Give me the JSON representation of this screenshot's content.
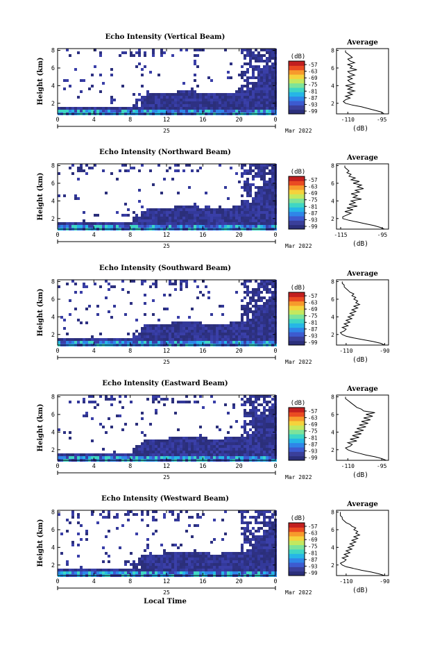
{
  "chart_data": {
    "type": "heatmap",
    "x_axis": {
      "label": "Local Time",
      "ticks": [
        "0",
        "4",
        "8",
        "12",
        "16",
        "20",
        "0"
      ],
      "range": [
        0,
        24
      ],
      "date_day": "25",
      "date_month_year": "Mar 2022"
    },
    "y_axis": {
      "label": "Height (km)",
      "ticks": [
        "2",
        "4",
        "6",
        "8"
      ],
      "range": [
        0.8,
        8.2
      ]
    },
    "colorbar": {
      "unit": "(dB)",
      "ticks": [
        "-57",
        "-63",
        "-69",
        "-75",
        "-81",
        "-87",
        "-93",
        "-99"
      ],
      "colors": [
        "#2b2f7a",
        "#3a3f9a",
        "#3d5bd0",
        "#2f86e8",
        "#26b6e6",
        "#3fd6c4",
        "#7de39a",
        "#c4e85f",
        "#f5d23c",
        "#f79a2c",
        "#ea4b22",
        "#c21f1f"
      ]
    },
    "panels": [
      {
        "title": "Echo Intensity (Vertical Beam)",
        "avg_title": "Average",
        "avg_xlabel": "(dB)",
        "avg_xticks": [
          "-110",
          "-95"
        ],
        "avg_xlim": [
          -115,
          -92
        ],
        "avg_profile": {
          "height": [
            0.8,
            1.0,
            1.2,
            1.4,
            1.6,
            1.8,
            2.0,
            2.2,
            2.4,
            2.6,
            2.8,
            3.0,
            3.2,
            3.4,
            3.6,
            3.8,
            4.0,
            4.2,
            4.4,
            4.6,
            4.8,
            5.0,
            5.2,
            5.4,
            5.6,
            5.8,
            6.0,
            6.2,
            6.4,
            6.6,
            6.8,
            7.0,
            7.2,
            7.4,
            7.6,
            7.8,
            8.0
          ],
          "db": [
            -94,
            -95,
            -98,
            -101,
            -104,
            -108,
            -111,
            -112,
            -111,
            -109,
            -111,
            -108,
            -110,
            -107,
            -110,
            -108,
            -111,
            -107,
            -109,
            -110,
            -108,
            -110,
            -107,
            -109,
            -110,
            -106,
            -109,
            -108,
            -110,
            -107,
            -109,
            -110,
            -108,
            -109,
            -110,
            -111,
            -111
          ]
        }
      },
      {
        "title": "Echo Intensity (Northward Beam)",
        "avg_title": "Average",
        "avg_xlabel": "(dB)",
        "avg_xticks": [
          "-115",
          "-95"
        ],
        "avg_xlim": [
          -117,
          -92
        ],
        "avg_profile": {
          "height": [
            0.8,
            1.0,
            1.2,
            1.4,
            1.6,
            1.8,
            2.0,
            2.2,
            2.4,
            2.6,
            2.8,
            3.0,
            3.2,
            3.4,
            3.6,
            3.8,
            4.0,
            4.2,
            4.4,
            4.6,
            4.8,
            5.0,
            5.2,
            5.4,
            5.6,
            5.8,
            6.0,
            6.2,
            6.4,
            6.6,
            6.8,
            7.0,
            7.2,
            7.4,
            7.6,
            7.8,
            8.0
          ],
          "db": [
            -94,
            -96,
            -99,
            -103,
            -107,
            -111,
            -114,
            -114,
            -112,
            -110,
            -113,
            -109,
            -112,
            -107,
            -111,
            -108,
            -110,
            -105,
            -109,
            -107,
            -110,
            -106,
            -108,
            -104,
            -107,
            -105,
            -109,
            -106,
            -110,
            -108,
            -111,
            -110,
            -112,
            -111,
            -112,
            -113,
            -113
          ]
        }
      },
      {
        "title": "Echo Intensity (Southward Beam)",
        "avg_title": "Average",
        "avg_xlabel": "(dB)",
        "avg_xticks": [
          "-110",
          "-90"
        ],
        "avg_xlim": [
          -115,
          -88
        ],
        "avg_profile": {
          "height": [
            0.8,
            1.0,
            1.2,
            1.4,
            1.6,
            1.8,
            2.0,
            2.2,
            2.4,
            2.6,
            2.8,
            3.0,
            3.2,
            3.4,
            3.6,
            3.8,
            4.0,
            4.2,
            4.4,
            4.6,
            4.8,
            5.0,
            5.2,
            5.4,
            5.6,
            5.8,
            6.0,
            6.2,
            6.4,
            6.6,
            6.8,
            7.0,
            7.2,
            7.4,
            7.6,
            7.8,
            8.0
          ],
          "db": [
            -90,
            -92,
            -96,
            -101,
            -106,
            -110,
            -112,
            -113,
            -111,
            -110,
            -112,
            -109,
            -111,
            -108,
            -110,
            -107,
            -109,
            -106,
            -108,
            -105,
            -107,
            -104,
            -106,
            -103,
            -105,
            -104,
            -106,
            -105,
            -107,
            -106,
            -108,
            -109,
            -110,
            -111,
            -111,
            -112,
            -112
          ]
        }
      },
      {
        "title": "Echo Intensity (Eastward Beam)",
        "avg_title": "Average",
        "avg_xlabel": "(dB)",
        "avg_xticks": [
          "-110",
          "-95"
        ],
        "avg_xlim": [
          -115,
          -92
        ],
        "avg_profile": {
          "height": [
            0.8,
            1.0,
            1.2,
            1.4,
            1.6,
            1.8,
            2.0,
            2.2,
            2.4,
            2.6,
            2.8,
            3.0,
            3.2,
            3.4,
            3.6,
            3.8,
            4.0,
            4.2,
            4.4,
            4.6,
            4.8,
            5.0,
            5.2,
            5.4,
            5.6,
            5.8,
            6.0,
            6.2,
            6.4,
            6.6,
            6.8,
            7.0,
            7.2,
            7.4,
            7.6,
            7.8,
            8.0
          ],
          "db": [
            -93,
            -95,
            -98,
            -102,
            -105,
            -108,
            -110,
            -111,
            -109,
            -108,
            -110,
            -106,
            -109,
            -105,
            -108,
            -104,
            -107,
            -103,
            -106,
            -102,
            -105,
            -101,
            -104,
            -100,
            -103,
            -99,
            -102,
            -98,
            -103,
            -104,
            -106,
            -107,
            -108,
            -109,
            -110,
            -111,
            -111
          ]
        }
      },
      {
        "title": "Echo Intensity (Westward Beam)",
        "avg_title": "Average",
        "avg_xlabel": "(dB)",
        "avg_xticks": [
          "-110",
          "-90"
        ],
        "avg_xlim": [
          -115,
          -88
        ],
        "avg_profile": {
          "height": [
            0.8,
            1.0,
            1.2,
            1.4,
            1.6,
            1.8,
            2.0,
            2.2,
            2.4,
            2.6,
            2.8,
            3.0,
            3.2,
            3.4,
            3.6,
            3.8,
            4.0,
            4.2,
            4.4,
            4.6,
            4.8,
            5.0,
            5.2,
            5.4,
            5.6,
            5.8,
            6.0,
            6.2,
            6.4,
            6.6,
            6.8,
            7.0,
            7.2,
            7.4,
            7.6,
            7.8,
            8.0
          ],
          "db": [
            -90,
            -93,
            -97,
            -102,
            -106,
            -110,
            -112,
            -113,
            -111,
            -110,
            -112,
            -109,
            -111,
            -108,
            -110,
            -107,
            -109,
            -106,
            -108,
            -105,
            -107,
            -104,
            -106,
            -103,
            -105,
            -104,
            -106,
            -105,
            -107,
            -108,
            -110,
            -111,
            -112,
            -112,
            -113,
            -113,
            -113
          ]
        }
      }
    ]
  }
}
